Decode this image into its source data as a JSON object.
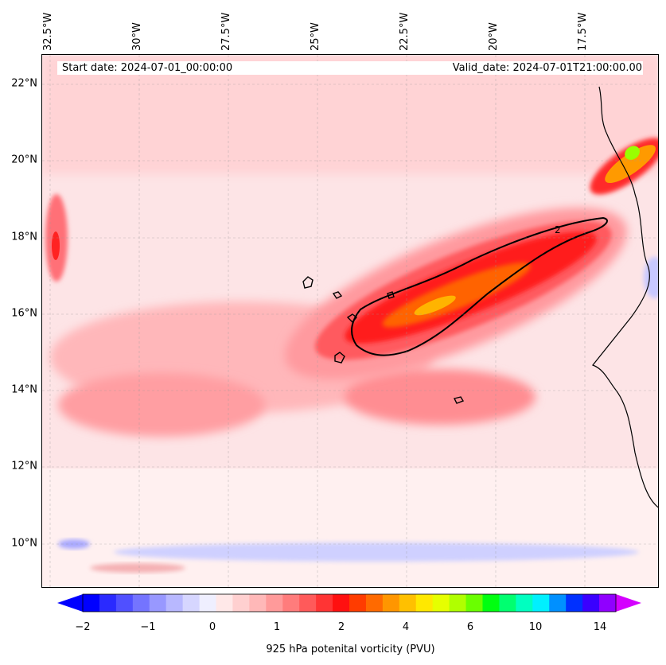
{
  "info": {
    "start_date": "Start date: 2024-07-01_00:00:00",
    "valid_date": "Valid_date: 2024-07-01T21:00:00.00"
  },
  "lat_labels": [
    "22°N",
    "20°N",
    "18°N",
    "16°N",
    "14°N",
    "12°N",
    "10°N"
  ],
  "lon_labels": [
    "32.5°W",
    "30°W",
    "27.5°W",
    "25°W",
    "22.5°W",
    "20°W",
    "17.5°W"
  ],
  "contour_label": "2",
  "colorbar": {
    "title": "925 hPa potenital vorticity (PVU)",
    "ticks": [
      "−2",
      "−1",
      "0",
      "1",
      "2",
      "4",
      "6",
      "10",
      "14"
    ],
    "colors": [
      "#0000ff",
      "#2a2aff",
      "#5050ff",
      "#7474ff",
      "#9898ff",
      "#b8b8ff",
      "#d6d6ff",
      "#efefff",
      "#ffe8e8",
      "#ffd0d0",
      "#ffb8b8",
      "#ff9a9a",
      "#ff7c7c",
      "#ff5a5a",
      "#ff3434",
      "#ff1010",
      "#ff3c00",
      "#ff6a00",
      "#ff9600",
      "#ffc000",
      "#ffe800",
      "#e6ff00",
      "#b0ff00",
      "#6aff00",
      "#00ff10",
      "#00ff70",
      "#00ffc0",
      "#00f0ff",
      "#0090ff",
      "#0030ff",
      "#3a00ff",
      "#9000ff"
    ],
    "under_color": "#0000ff",
    "over_color": "#d400ff"
  }
}
